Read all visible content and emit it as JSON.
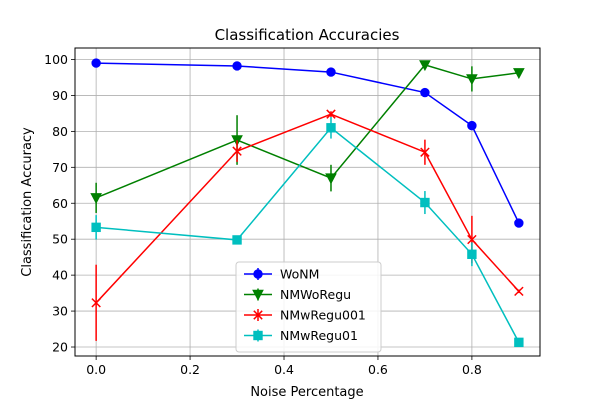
{
  "chart_data": {
    "type": "line",
    "title": "Classification Accuracies",
    "xlabel": "Noise Percentage",
    "ylabel": "Classification Accuracy",
    "xlim": [
      -0.045,
      0.945
    ],
    "ylim": [
      17.5,
      103.2
    ],
    "xticks": [
      0.0,
      0.2,
      0.4,
      0.6,
      0.8
    ],
    "xtick_labels": [
      "0.0",
      "0.2",
      "0.4",
      "0.6",
      "0.8"
    ],
    "yticks": [
      20,
      30,
      40,
      50,
      60,
      70,
      80,
      90,
      100
    ],
    "ytick_labels": [
      "20",
      "30",
      "40",
      "50",
      "60",
      "70",
      "80",
      "90",
      "100"
    ],
    "grid": true,
    "legend_position": "lower-center",
    "series": [
      {
        "name": "WoNM",
        "color": "#0000ff",
        "marker": "circle",
        "x": [
          0.0,
          0.3,
          0.5,
          0.7,
          0.8,
          0.9
        ],
        "y": [
          99.0,
          98.2,
          96.5,
          90.8,
          81.6,
          54.5
        ],
        "err": [
          0.4,
          0.4,
          0.4,
          0.4,
          0.5,
          0.8
        ]
      },
      {
        "name": "NMWoRegu",
        "color": "#008000",
        "marker": "triangle-down",
        "x": [
          0.0,
          0.3,
          0.5,
          0.7,
          0.8,
          0.9
        ],
        "y": [
          61.5,
          77.6,
          67.0,
          98.5,
          94.6,
          96.3
        ],
        "err": [
          4.2,
          6.9,
          3.7,
          0.8,
          3.5,
          0.6
        ]
      },
      {
        "name": "NMwRegu001",
        "color": "#ff0000",
        "marker": "x",
        "x": [
          0.0,
          0.3,
          0.5,
          0.7,
          0.8,
          0.9
        ],
        "y": [
          32.3,
          74.5,
          84.8,
          74.2,
          49.9,
          35.5
        ],
        "err": [
          10.6,
          3.0,
          0.8,
          3.5,
          6.6,
          0.5
        ]
      },
      {
        "name": "NMwRegu01",
        "color": "#00bfbf",
        "marker": "square",
        "x": [
          0.0,
          0.3,
          0.5,
          0.7,
          0.8,
          0.9
        ],
        "y": [
          53.3,
          49.8,
          81.0,
          60.2,
          45.8,
          21.3
        ],
        "err": [
          3.4,
          0.4,
          3.0,
          3.2,
          3.3,
          0.4
        ]
      }
    ]
  }
}
